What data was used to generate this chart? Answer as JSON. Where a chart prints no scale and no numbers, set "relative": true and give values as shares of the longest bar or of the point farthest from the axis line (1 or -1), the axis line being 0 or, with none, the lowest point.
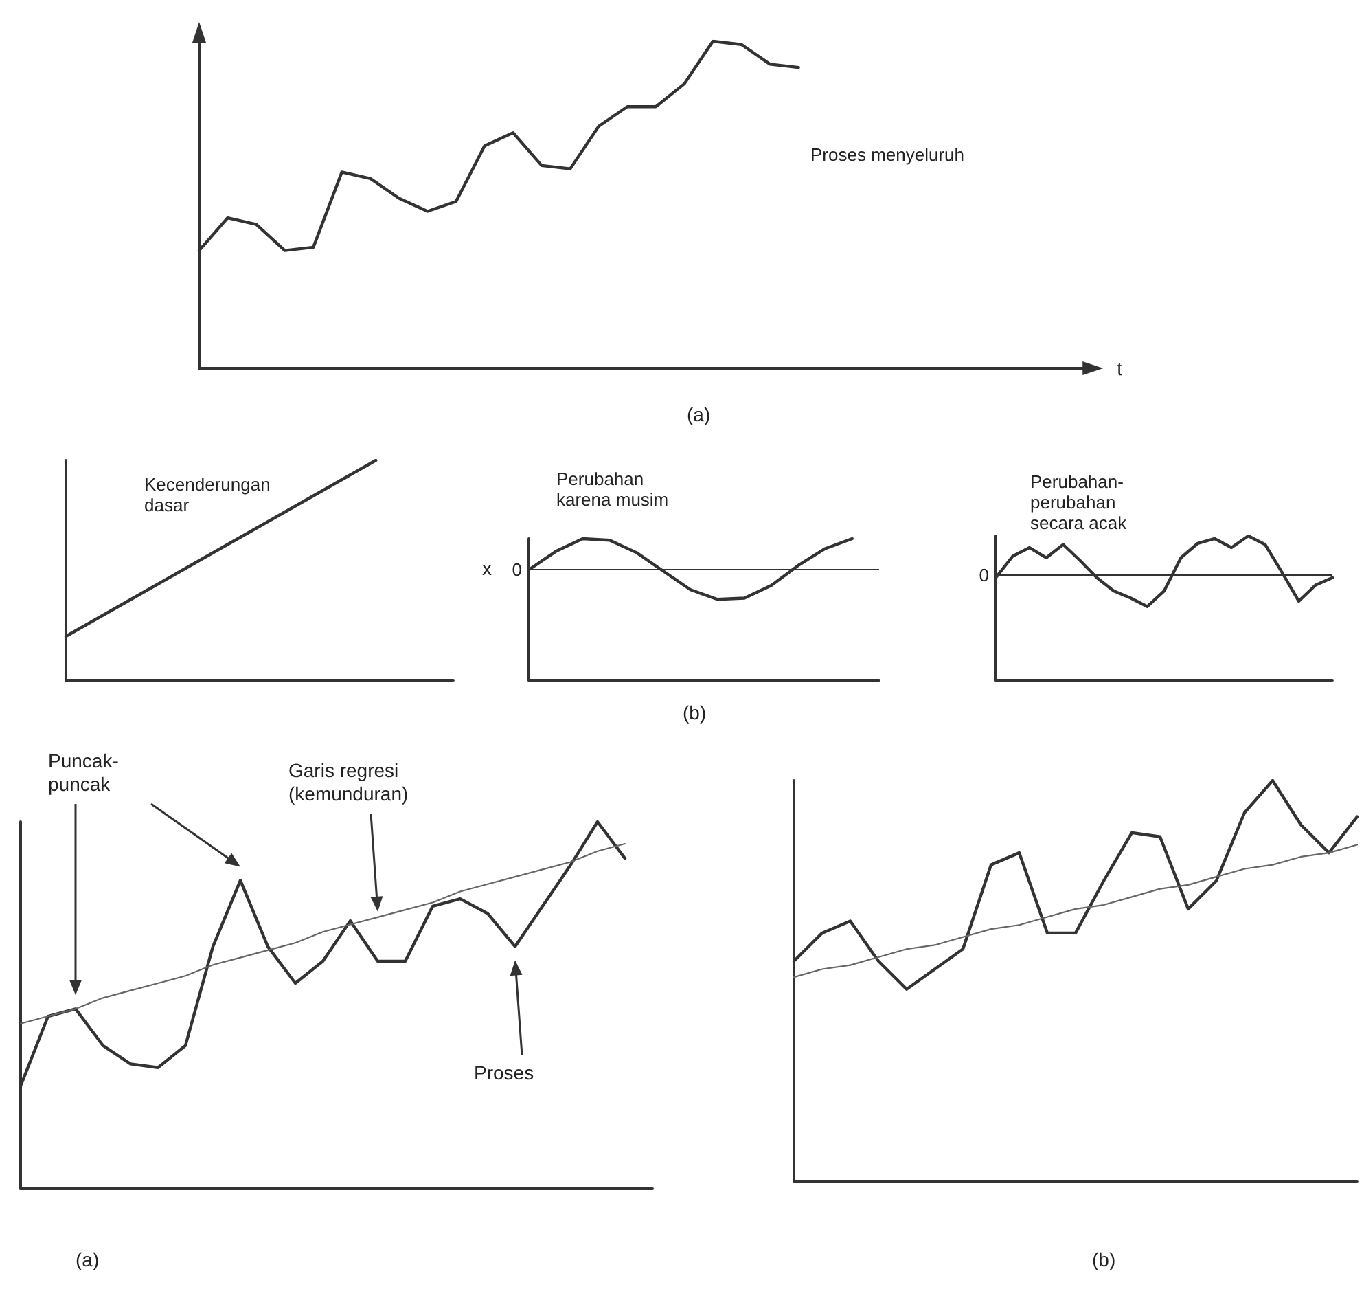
{
  "chart_data": [
    {
      "type": "line",
      "title": "Proses menyeluruh",
      "xlabel": "t",
      "annotations": [
        "(a)"
      ],
      "relative": true,
      "categories": [
        null,
        null,
        null,
        null,
        null,
        null,
        null,
        null,
        null,
        null,
        null,
        null,
        null,
        null,
        null,
        null,
        null,
        null,
        null,
        null,
        null,
        null,
        null,
        null,
        null,
        null,
        null,
        null,
        null,
        null,
        null,
        null
      ],
      "series": [
        {
          "color": "#333333",
          "values": [
            0.36,
            0.46,
            0.44,
            0.36,
            0.37,
            0.6,
            0.58,
            0.52,
            0.48,
            0.51,
            0.68,
            0.72,
            0.62,
            0.61,
            0.74,
            0.8,
            0.8,
            0.87,
            1.0,
            0.99,
            0.93,
            0.92,
            null,
            null,
            null,
            null,
            null,
            null,
            null,
            null,
            null,
            null
          ]
        }
      ]
    },
    {
      "type": "line",
      "title": "Kecenderungan\ndasar",
      "relative": true,
      "categories": [
        null,
        null,
        null,
        null,
        null,
        null,
        null,
        null,
        null,
        null,
        null
      ],
      "series": [
        {
          "color": "#333333",
          "values": [
            0.2,
            0.3,
            0.4,
            0.5,
            0.6,
            0.7,
            0.8,
            0.9,
            1.0,
            null,
            null
          ]
        }
      ]
    },
    {
      "type": "line",
      "title": "Perubahan\nkarena musim",
      "ylabel": "x",
      "annotations": [
        "(b)"
      ],
      "relative": true,
      "categories": [
        null,
        null,
        null,
        null,
        null,
        null,
        null,
        null,
        null,
        null,
        null,
        null,
        null,
        null
      ],
      "ref_lines": [
        {
          "axis": "y",
          "value": 0,
          "label": "0"
        }
      ],
      "series": [
        {
          "color": "#333333",
          "values": [
            0,
            0.59,
            1.0,
            0.95,
            0.55,
            -0.05,
            -0.64,
            -0.95,
            -0.91,
            -0.5,
            0.14,
            0.68,
            1.0,
            null
          ]
        }
      ]
    },
    {
      "type": "line",
      "title": "Perubahan-\nperubahan\nsecara acak",
      "relative": true,
      "categories": [
        null,
        null,
        null,
        null,
        null,
        null,
        null,
        null,
        null,
        null,
        null,
        null,
        null,
        null,
        null,
        null,
        null,
        null,
        null,
        null,
        null
      ],
      "ref_lines": [
        {
          "axis": "y",
          "value": 0,
          "label": "0"
        }
      ],
      "series": [
        {
          "color": "#333333",
          "values": [
            -0.07,
            0.48,
            0.7,
            0.44,
            0.78,
            0.37,
            -0.07,
            -0.41,
            -0.59,
            -0.81,
            -0.41,
            0.44,
            0.81,
            0.93,
            0.7,
            1.0,
            0.78,
            0.07,
            -0.67,
            -0.26,
            -0.07
          ]
        }
      ]
    },
    {
      "type": "line",
      "annotations": [
        "Puncak-\npuncak",
        "Garis regresi\n(kemunduran)",
        "Proses",
        "(a)"
      ],
      "relative": true,
      "categories": [
        null,
        null,
        null,
        null,
        null,
        null,
        null,
        null,
        null,
        null,
        null,
        null,
        null,
        null,
        null,
        null,
        null,
        null,
        null,
        null,
        null,
        null,
        null,
        null
      ],
      "series": [
        {
          "color": "#333333",
          "values": [
            0.28,
            0.47,
            0.49,
            0.39,
            0.34,
            0.33,
            0.39,
            0.66,
            0.84,
            0.66,
            0.56,
            0.62,
            0.73,
            0.62,
            0.62,
            0.77,
            0.79,
            0.75,
            0.66,
            0.77,
            0.88,
            1.0,
            0.9,
            null
          ]
        },
        {
          "color": "#666666",
          "values": [
            0.45,
            0.47,
            0.49,
            0.52,
            0.54,
            0.56,
            0.58,
            0.61,
            0.63,
            0.65,
            0.67,
            0.7,
            0.72,
            0.74,
            0.76,
            0.78,
            0.81,
            0.83,
            0.85,
            0.87,
            0.89,
            0.92,
            0.94,
            null
          ]
        }
      ]
    },
    {
      "type": "line",
      "annotations": [
        "(b)"
      ],
      "relative": true,
      "categories": [
        null,
        null,
        null,
        null,
        null,
        null,
        null,
        null,
        null,
        null,
        null,
        null,
        null,
        null,
        null,
        null,
        null,
        null,
        null,
        null,
        null
      ],
      "series": [
        {
          "color": "#333333",
          "values": [
            0.55,
            0.62,
            0.65,
            0.55,
            0.48,
            0.53,
            0.58,
            0.79,
            0.82,
            0.62,
            0.62,
            0.75,
            0.87,
            0.86,
            0.68,
            0.75,
            0.92,
            1.0,
            0.89,
            0.82,
            0.91
          ]
        },
        {
          "color": "#666666",
          "values": [
            0.51,
            0.53,
            0.54,
            0.56,
            0.58,
            0.59,
            0.61,
            0.63,
            0.64,
            0.66,
            0.68,
            0.69,
            0.71,
            0.73,
            0.74,
            0.76,
            0.78,
            0.79,
            0.81,
            0.82,
            0.84
          ]
        }
      ]
    }
  ]
}
